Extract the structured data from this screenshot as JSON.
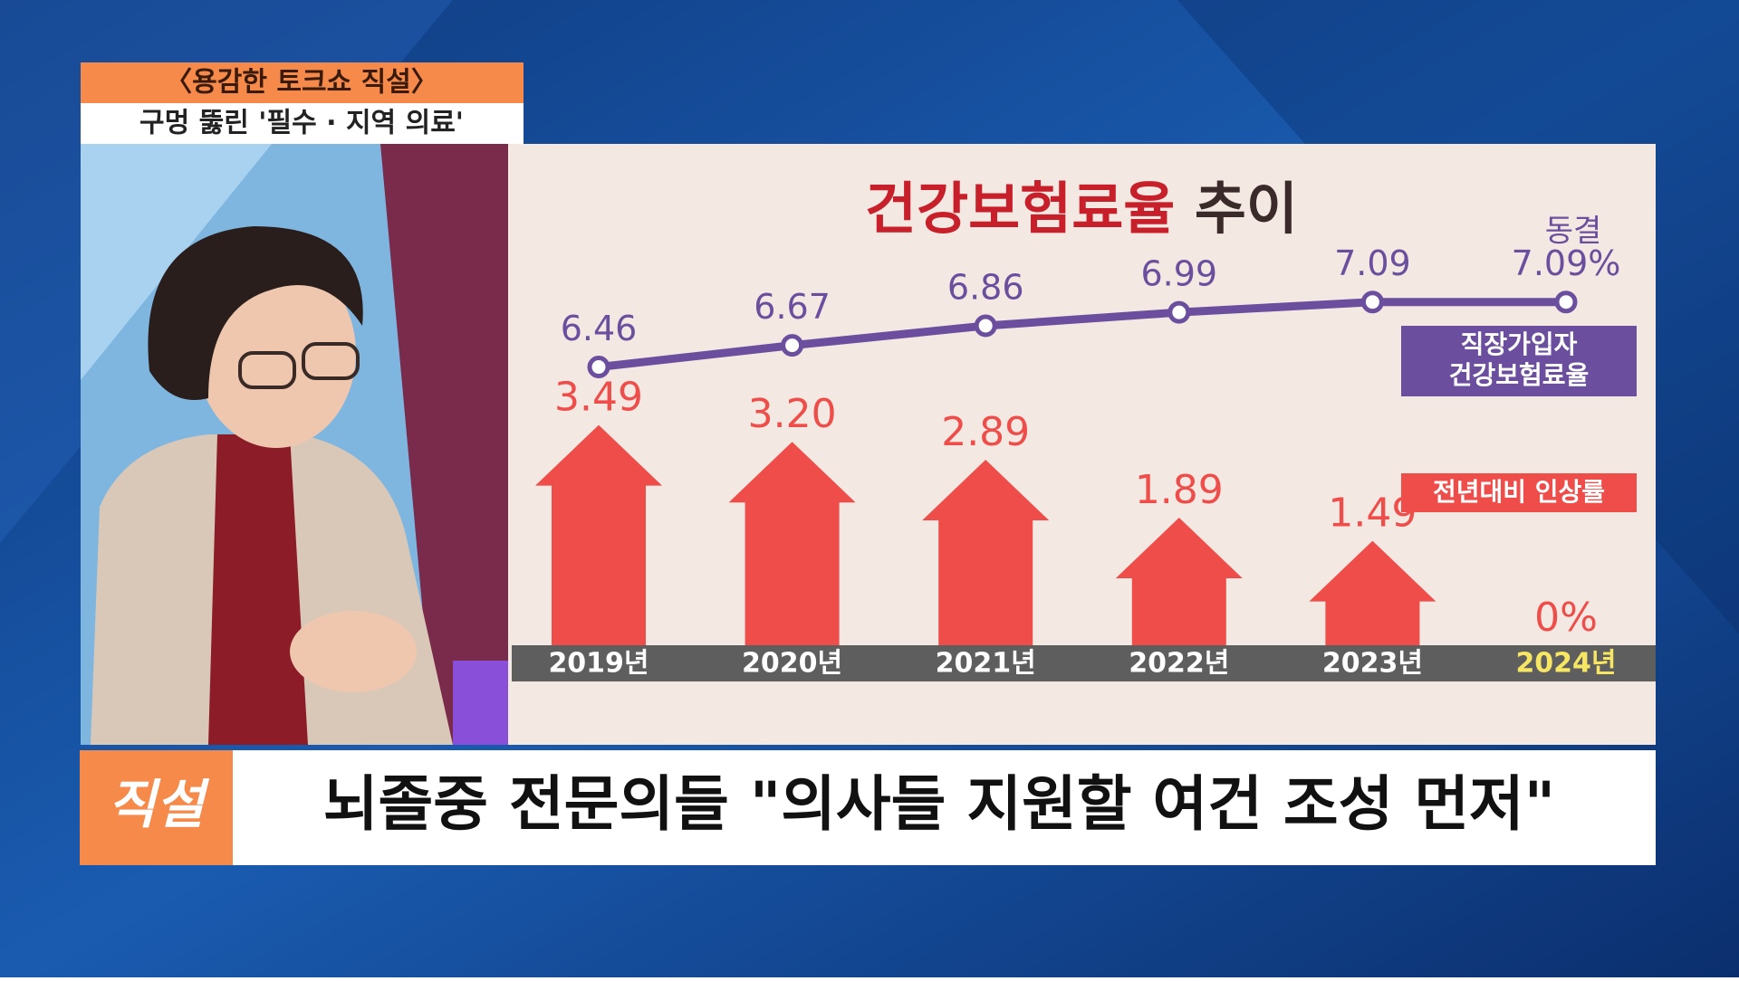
{
  "program": {
    "show": "〈용감한 토크쇼 직설〉",
    "topic": "구멍 뚫린 '필수 · 지역 의료'"
  },
  "chart_data": {
    "type": "bar",
    "title": "건강보험료율 추이",
    "categories": [
      "2019년",
      "2020년",
      "2021년",
      "2022년",
      "2023년",
      "2024년"
    ],
    "series": [
      {
        "name": "직장가입자 건강보험료율",
        "type": "line",
        "color": "#6b4f9e",
        "values": [
          6.46,
          6.67,
          6.86,
          6.99,
          7.09,
          7.09
        ],
        "value_labels": [
          "6.46",
          "6.67",
          "6.86",
          "6.99",
          "7.09",
          "7.09%"
        ]
      },
      {
        "name": "전년대비 인상률",
        "type": "bar",
        "color": "#ef4d4a",
        "values": [
          3.49,
          3.2,
          2.89,
          1.89,
          1.49,
          0
        ],
        "value_labels": [
          "3.49",
          "3.20",
          "2.89",
          "1.89",
          "1.49",
          "0%"
        ]
      }
    ],
    "annotation": "동결"
  },
  "caption": {
    "logo": "직설",
    "headline": "뇌졸중 전문의들 \"의사들 지원할 여건 조성 먼저\""
  }
}
